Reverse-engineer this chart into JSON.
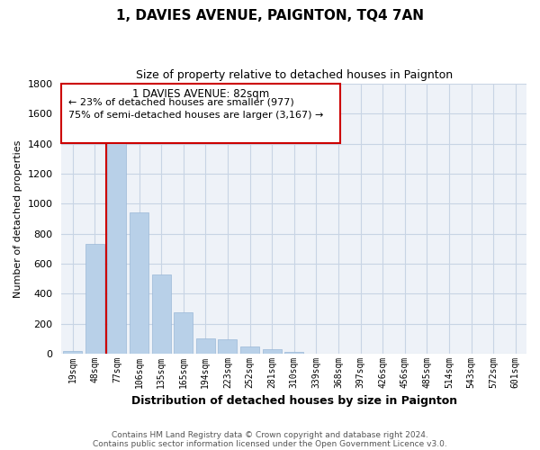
{
  "title": "1, DAVIES AVENUE, PAIGNTON, TQ4 7AN",
  "subtitle": "Size of property relative to detached houses in Paignton",
  "xlabel": "Distribution of detached houses by size in Paignton",
  "ylabel": "Number of detached properties",
  "categories": [
    "19sqm",
    "48sqm",
    "77sqm",
    "106sqm",
    "135sqm",
    "165sqm",
    "194sqm",
    "223sqm",
    "252sqm",
    "281sqm",
    "310sqm",
    "339sqm",
    "368sqm",
    "397sqm",
    "426sqm",
    "456sqm",
    "485sqm",
    "514sqm",
    "543sqm",
    "572sqm",
    "601sqm"
  ],
  "values": [
    20,
    730,
    1430,
    940,
    530,
    275,
    105,
    95,
    50,
    28,
    10,
    0,
    0,
    0,
    0,
    0,
    0,
    0,
    0,
    0,
    0
  ],
  "bar_color": "#b8d0e8",
  "bar_edge_color": "#9ab8d8",
  "vline_color": "#cc0000",
  "vline_index": 2,
  "ylim": [
    0,
    1800
  ],
  "yticks": [
    0,
    200,
    400,
    600,
    800,
    1000,
    1200,
    1400,
    1600,
    1800
  ],
  "annotation_title": "1 DAVIES AVENUE: 82sqm",
  "annotation_line1": "← 23% of detached houses are smaller (977)",
  "annotation_line2": "75% of semi-detached houses are larger (3,167) →",
  "footnote1": "Contains HM Land Registry data © Crown copyright and database right 2024.",
  "footnote2": "Contains public sector information licensed under the Open Government Licence v3.0.",
  "background_color": "#ffffff",
  "plot_bg_color": "#eef2f8",
  "grid_color": "#c8d4e4"
}
